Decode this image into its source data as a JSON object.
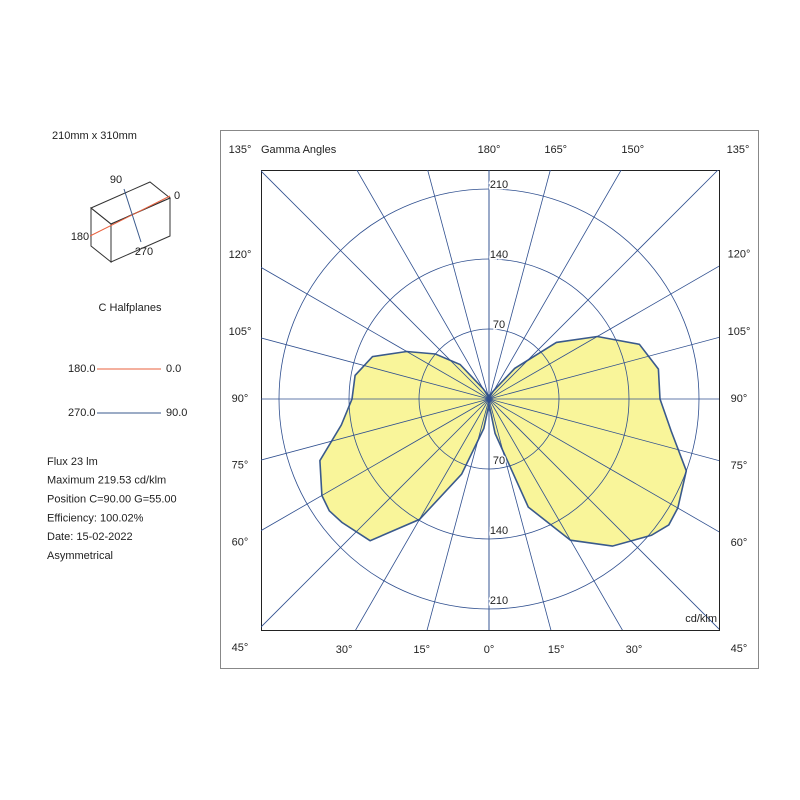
{
  "chart_data": {
    "type": "polar",
    "title": "Gamma Angles",
    "ylabel": "cd/klm",
    "ylim": [
      0,
      210
    ],
    "yticks": [
      70,
      140,
      210
    ],
    "x": [
      0,
      10,
      20,
      30,
      40,
      50,
      55,
      60,
      70,
      80,
      90,
      100,
      110,
      120,
      130,
      140,
      150,
      160,
      170,
      180
    ],
    "xticks": [
      {
        "value": 0,
        "label": "0°"
      },
      {
        "value": 15,
        "label": "15°"
      },
      {
        "value": 30,
        "label": "30°"
      },
      {
        "value": 45,
        "label": "45°"
      },
      {
        "value": 60,
        "label": "60°"
      },
      {
        "value": 75,
        "label": "75°"
      },
      {
        "value": 90,
        "label": "90°"
      },
      {
        "value": 105,
        "label": "105°"
      },
      {
        "value": 120,
        "label": "120°"
      },
      {
        "value": 135,
        "label": "135°"
      },
      {
        "value": 150,
        "label": "150°"
      },
      {
        "value": 165,
        "label": "165°"
      },
      {
        "value": 180,
        "label": "180°"
      }
    ],
    "xticks_left": [
      {
        "value": 15,
        "label": "15°"
      },
      {
        "value": 30,
        "label": "30°"
      },
      {
        "value": 45,
        "label": "45°"
      },
      {
        "value": 60,
        "label": "60°"
      },
      {
        "value": 75,
        "label": "75°"
      },
      {
        "value": 90,
        "label": "90°"
      },
      {
        "value": 105,
        "label": "105°"
      },
      {
        "value": 120,
        "label": "120°"
      },
      {
        "value": 135,
        "label": "135°"
      }
    ],
    "fill": "#f9f59a",
    "halfplanes": [
      {
        "from": "180.0",
        "to": "0.0",
        "color": "#e8603c"
      }
    ],
    "series": [
      {
        "name": "270.0",
        "color": "#3a5a8c",
        "values": [
          5,
          30,
          80,
          139,
          185,
          192,
          195,
          193,
          180,
          150,
          137,
          136,
          124,
          95,
          70,
          45,
          12,
          5,
          3,
          2
        ]
      },
      {
        "name": "90.0",
        "color": "#3a5a8c",
        "values": [
          5,
          35,
          115,
          163,
          192,
          212,
          219.53,
          218,
          210,
          185,
          171,
          172,
          160,
          125,
          88,
          40,
          10,
          5,
          3,
          2
        ]
      }
    ]
  },
  "panel": {
    "size": "210mm x 310mm",
    "c_labels": [
      "90",
      "0",
      "180",
      "270"
    ],
    "halfplanes_title": "C Halfplanes",
    "info": [
      "Flux 23  lm",
      "Maximum 219.53  cd/klm",
      "Position C=90.00 G=55.00",
      "Efficiency: 100.02%",
      "Date: 15-02-2022",
      "Asymmetrical"
    ]
  }
}
